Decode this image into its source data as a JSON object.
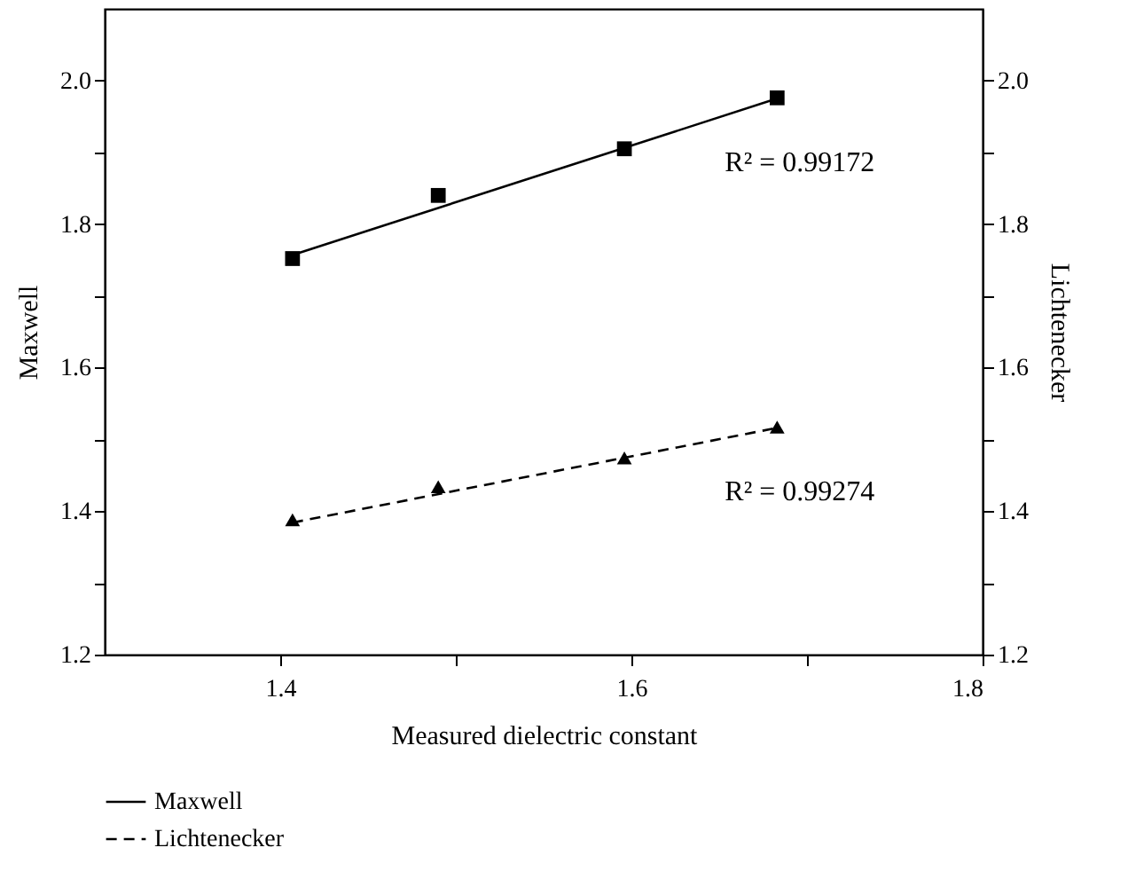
{
  "chart_data": {
    "type": "scatter",
    "xlabel": "Measured dielectric constant",
    "ylabel": "Maxwell",
    "y2label": "Lichtenecker",
    "xlim": [
      1.3,
      1.8
    ],
    "xticks": [
      1.4,
      {
        "value": 1.5,
        "label": null
      },
      1.6,
      {
        "value": 1.7,
        "label": null
      },
      1.8
    ],
    "ylim": [
      1.2,
      2.1
    ],
    "yticks": [
      1.2,
      {
        "value": 1.3,
        "label": null
      },
      1.4,
      {
        "value": 1.5,
        "label": null
      },
      1.6,
      {
        "value": 1.7,
        "label": null
      },
      1.8,
      {
        "value": 1.9,
        "label": null
      },
      {
        "value": 2,
        "label": "2.0"
      }
    ],
    "y2lim": [
      1.2,
      2.1
    ],
    "y2ticks": [
      1.2,
      {
        "value": 1.3,
        "label": null
      },
      1.4,
      {
        "value": 1.5,
        "label": null
      },
      1.6,
      {
        "value": 1.7,
        "label": null
      },
      1.8,
      {
        "value": 1.9,
        "label": null
      },
      {
        "value": 2,
        "label": "2.0"
      }
    ],
    "legend": "bottom",
    "series": [
      {
        "type": "scatter",
        "marker": "square",
        "color": "#000000",
        "x": [
          1.407,
          1.49,
          1.596,
          1.683
        ],
        "values": [
          1.752,
          1.84,
          1.905,
          1.976
        ]
      },
      {
        "type": "line",
        "name": "Maxwell",
        "line_style": "solid",
        "color": "#000000",
        "x": [
          1.407,
          1.683
        ],
        "values": [
          1.757,
          1.975
        ]
      },
      {
        "type": "scatter",
        "marker": "triangle",
        "axis": "y2",
        "color": "#000000",
        "x": [
          1.407,
          1.49,
          1.596,
          1.683
        ],
        "values": [
          1.388,
          1.434,
          1.474,
          1.517
        ]
      },
      {
        "type": "line",
        "name": "Lichtenecker",
        "line_style": "dashed",
        "axis": "y2",
        "color": "#000000",
        "x": [
          1.407,
          1.683
        ],
        "values": [
          1.384,
          1.516
        ]
      }
    ],
    "annotations": [
      "R² = 0.99172",
      "R² = 0.99274"
    ]
  }
}
